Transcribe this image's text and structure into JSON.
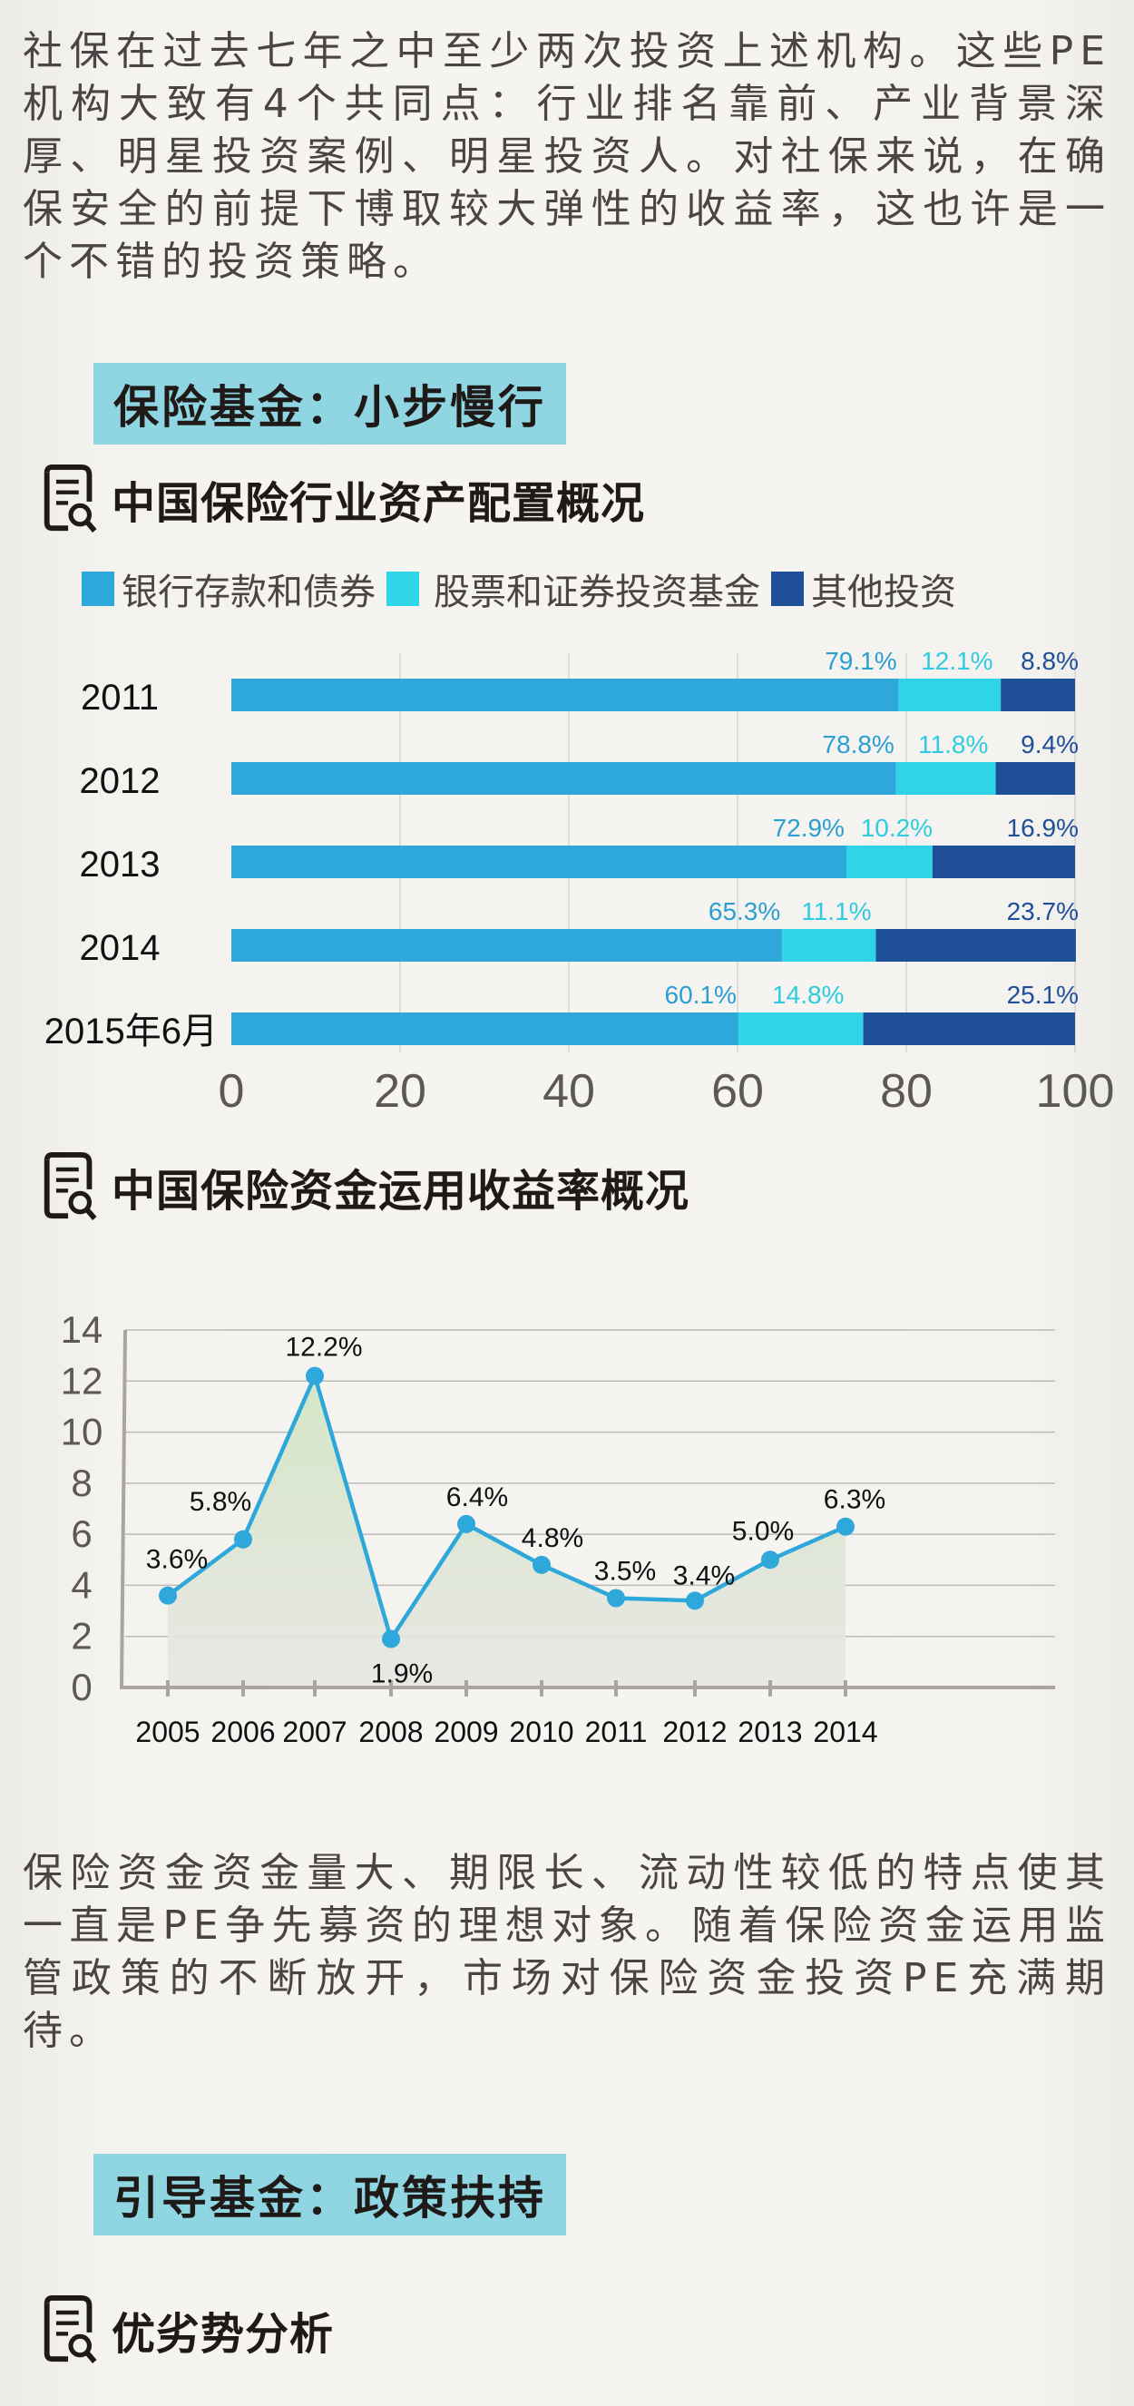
{
  "intro_paragraph": "社保在过去七年之中至少两次投资上述机构。这些PE机构大致有4个共同点：行业排名靠前、产业背景深厚、明星投资案例、明星投资人。对社保来说，在确保安全的前提下博取较大弹性的收益率，这也许是一个不错的投资策略。",
  "section1": {
    "banner": "保险基金：小步慢行"
  },
  "subheads": {
    "allocation": "中国保险行业资产配置概况",
    "returns": "中国保险资金运用收益率概况",
    "analysis": "优劣势分析"
  },
  "insurance_paragraph": "保险资金资金量大、期限长、流动性较低的特点使其一直是PE争先募资的理想对象。随着保险资金运用监管政策的不断放开，市场对保险资金投资PE充满期待。",
  "section2": {
    "banner": "引导基金：政策扶持"
  },
  "icons": {
    "subhead_icon": "document-search-icon"
  },
  "colors": {
    "bank": "#2ea8db",
    "stock": "#2fd5e6",
    "other": "#204f99",
    "line": "#2ea8db",
    "banner": "#8fd6e2"
  },
  "chart_data": [
    {
      "type": "bar",
      "orientation": "horizontal-stacked",
      "title": "中国保险行业资产配置概况",
      "categories": [
        "2011",
        "2012",
        "2013",
        "2014",
        "2015年6月"
      ],
      "series": [
        {
          "name": "银行存款和债券",
          "values": [
            79.1,
            78.8,
            72.9,
            65.3,
            60.1
          ],
          "labels": [
            "79.1%",
            "78.8%",
            "72.9%",
            "65.3%",
            "60.1%"
          ]
        },
        {
          "name": "股票和证券投资基金",
          "values": [
            12.1,
            11.8,
            10.2,
            11.1,
            14.8
          ],
          "labels": [
            "12.1%",
            "11.8%",
            "10.2%",
            "11.1%",
            "14.8%"
          ]
        },
        {
          "name": "其他投资",
          "values": [
            8.8,
            9.4,
            16.9,
            23.7,
            25.1
          ],
          "labels": [
            "8.8%",
            "9.4%",
            "16.9%",
            "23.7%",
            "25.1%"
          ]
        }
      ],
      "xlim": [
        0,
        100
      ],
      "xticks": [
        "0",
        "20",
        "40",
        "60",
        "80",
        "100"
      ],
      "grid": true,
      "legend": "top"
    },
    {
      "type": "line",
      "title": "中国保险资金运用收益率概况",
      "x": [
        "2005",
        "2006",
        "2007",
        "2008",
        "2009",
        "2010",
        "2011",
        "2012",
        "2013",
        "2014"
      ],
      "series": [
        {
          "name": "收益率",
          "values": [
            3.6,
            5.8,
            12.2,
            1.9,
            6.4,
            4.8,
            3.5,
            3.4,
            5.0,
            6.3
          ],
          "labels": [
            "3.6%",
            "5.8%",
            "12.2%",
            "1.9%",
            "6.4%",
            "4.8%",
            "3.5%",
            "3.4%",
            "5.0%",
            "6.3%"
          ]
        }
      ],
      "ylim": [
        0,
        14
      ],
      "yticks": [
        "0",
        "2",
        "4",
        "6",
        "8",
        "10",
        "12",
        "14"
      ],
      "grid": true,
      "area_fill": true
    }
  ]
}
